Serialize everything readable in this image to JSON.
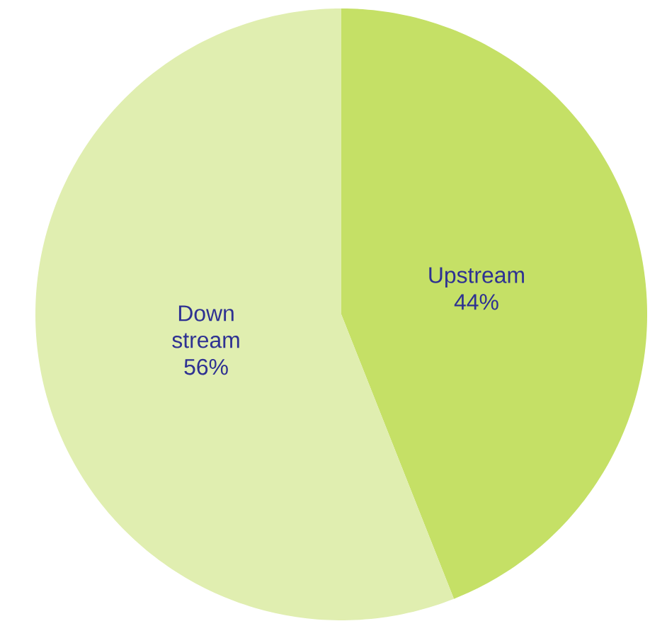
{
  "chart_data": {
    "type": "pie",
    "categories": [
      "Upstream",
      "Down stream"
    ],
    "values": [
      44,
      56
    ],
    "value_labels": [
      "44%",
      "56%"
    ],
    "colors": [
      "#c5e066",
      "#e0eeb0"
    ]
  }
}
